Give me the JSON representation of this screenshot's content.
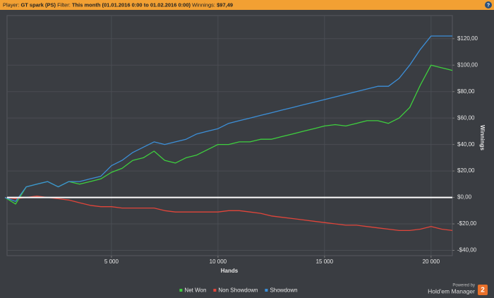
{
  "header": {
    "player_label": "Player:",
    "player": "GT spark (PS)",
    "filter_label": "Filter:",
    "filter": "This month (01.01.2016 0:00 to 01.02.2016 0:00)",
    "winnings_label": "Winnings:",
    "winnings": "$97,49",
    "help": "?"
  },
  "branding": {
    "powered_by": "Powered by",
    "product": "Hold'em Manager",
    "badge": "2"
  },
  "chart_data": {
    "type": "line",
    "xlabel": "Hands",
    "ylabel": "Winnings",
    "x": [
      0,
      500,
      1000,
      1500,
      2000,
      2500,
      3000,
      3500,
      4000,
      4500,
      5000,
      5500,
      6000,
      6500,
      7000,
      7500,
      8000,
      8500,
      9000,
      9500,
      10000,
      10500,
      11000,
      11500,
      12000,
      12500,
      13000,
      13500,
      14000,
      14500,
      15000,
      15500,
      16000,
      16500,
      17000,
      17500,
      18000,
      18500,
      19000,
      19500,
      20000,
      20500,
      21000
    ],
    "series": [
      {
        "name": "Net Won",
        "color": "#3ecf3e",
        "values": [
          0,
          -5,
          8,
          10,
          12,
          8,
          12,
          10,
          12,
          14,
          19,
          22,
          28,
          30,
          35,
          28,
          26,
          30,
          32,
          36,
          40,
          40,
          42,
          42,
          44,
          44,
          46,
          48,
          50,
          52,
          54,
          55,
          54,
          56,
          58,
          58,
          56,
          60,
          68,
          85,
          100,
          98,
          96
        ]
      },
      {
        "name": "Non Showdown",
        "color": "#e0453a",
        "values": [
          0,
          -1,
          0,
          1,
          0,
          -1,
          -2,
          -4,
          -6,
          -7,
          -7,
          -8,
          -8,
          -8,
          -8,
          -10,
          -11,
          -11,
          -11,
          -11,
          -11,
          -10,
          -10,
          -11,
          -12,
          -14,
          -15,
          -16,
          -17,
          -18,
          -19,
          -20,
          -21,
          -21,
          -22,
          -23,
          -24,
          -25,
          -25,
          -24,
          -22,
          -24,
          -25
        ]
      },
      {
        "name": "Showdown",
        "color": "#3c8fd8",
        "values": [
          0,
          -3,
          8,
          10,
          12,
          8,
          12,
          12,
          14,
          16,
          24,
          28,
          34,
          38,
          42,
          40,
          42,
          44,
          48,
          50,
          52,
          56,
          58,
          60,
          62,
          64,
          66,
          68,
          70,
          72,
          74,
          76,
          78,
          80,
          82,
          84,
          84,
          90,
          100,
          112,
          122,
          122,
          122
        ]
      }
    ],
    "xlim": [
      0,
      21000
    ],
    "ylim": [
      -44,
      137.5
    ],
    "xticks": [
      {
        "value": 5000,
        "label": "5 000"
      },
      {
        "value": 10000,
        "label": "10 000"
      },
      {
        "value": 15000,
        "label": "15 000"
      },
      {
        "value": 20000,
        "label": "20 000"
      }
    ],
    "yticks": [
      {
        "value": -40,
        "label": "-$40,00"
      },
      {
        "value": -20,
        "label": "-$20,00"
      },
      {
        "value": 0,
        "label": "$0,00"
      },
      {
        "value": 20,
        "label": "$20,00"
      },
      {
        "value": 40,
        "label": "$40,00"
      },
      {
        "value": 60,
        "label": "$60,00"
      },
      {
        "value": 80,
        "label": "$80,00"
      },
      {
        "value": 100,
        "label": "$100,00"
      },
      {
        "value": 120,
        "label": "$120,00"
      }
    ],
    "grid": true,
    "zero_line": true,
    "legend": "bottom"
  }
}
